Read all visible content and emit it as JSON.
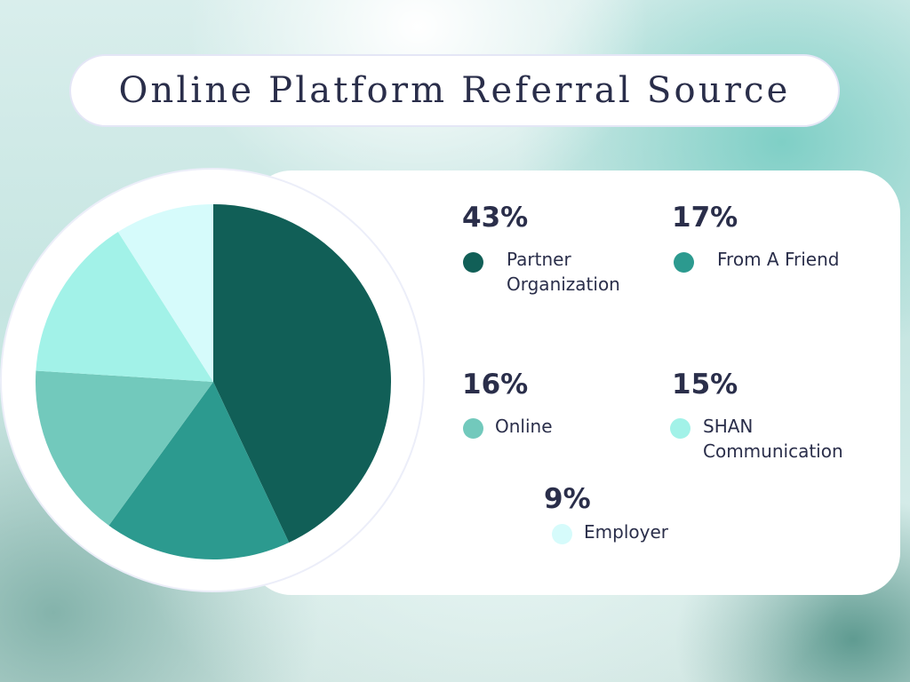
{
  "title": "Online Platform Referral Source",
  "chart_data": {
    "type": "pie",
    "title": "Online Platform Referral Source",
    "slices": [
      {
        "label": "Partner Organization",
        "value": 43,
        "display": "43%",
        "color": "#115f57"
      },
      {
        "label": "From A Friend",
        "value": 17,
        "display": "17%",
        "color": "#2c9a8f"
      },
      {
        "label": "Online",
        "value": 16,
        "display": "16%",
        "color": "#72c9bc"
      },
      {
        "label": "SHAN Communication",
        "value": 15,
        "display": "15%",
        "color": "#a2f2e8"
      },
      {
        "label": "Employer",
        "value": 9,
        "display": "9%",
        "color": "#d6fbfb"
      }
    ]
  },
  "legend": {
    "partner": {
      "percent": "43%",
      "line1": "Partner",
      "line2": "Organization"
    },
    "friend": {
      "percent": "17%",
      "line1": "From A Friend"
    },
    "online": {
      "percent": "16%",
      "line1": "Online"
    },
    "shan": {
      "percent": "15%",
      "line1": "SHAN",
      "line2": "Communication"
    },
    "employer": {
      "percent": "9%",
      "line1": "Employer"
    }
  }
}
